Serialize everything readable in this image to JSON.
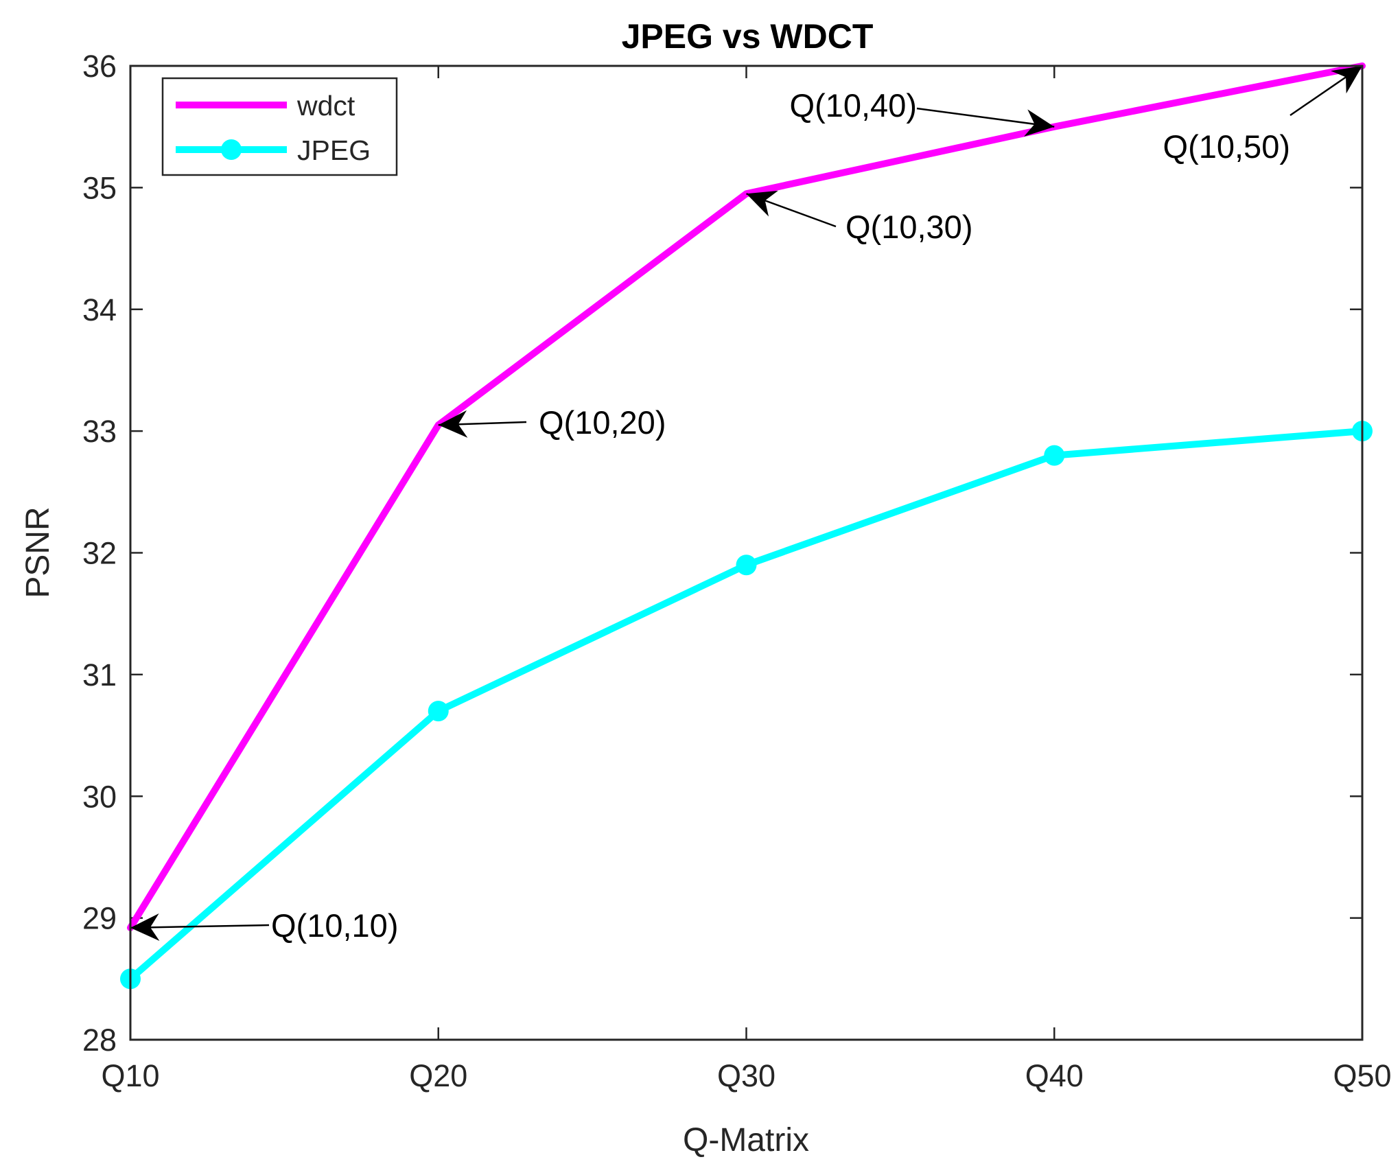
{
  "chart_data": {
    "type": "line",
    "title": "JPEG vs WDCT",
    "xlabel": "Q-Matrix",
    "ylabel": "PSNR",
    "categories": [
      "Q10",
      "Q20",
      "Q30",
      "Q40",
      "Q50"
    ],
    "ylim": [
      28,
      36
    ],
    "yticks": [
      28,
      29,
      30,
      31,
      32,
      33,
      34,
      35,
      36
    ],
    "grid": false,
    "legend_position": "top-left",
    "series": [
      {
        "name": "wdct",
        "color": "#ff00ff",
        "marker": "none",
        "values": [
          28.92,
          33.05,
          34.95,
          35.5,
          36.0
        ]
      },
      {
        "name": "JPEG",
        "color": "#00ffff",
        "marker": "circle",
        "values": [
          28.5,
          30.7,
          31.9,
          32.8,
          33.0
        ]
      }
    ],
    "annotations": [
      {
        "text": "Q(10,10)",
        "series": "wdct",
        "point_index": 0
      },
      {
        "text": "Q(10,20)",
        "series": "wdct",
        "point_index": 1
      },
      {
        "text": "Q(10,30)",
        "series": "wdct",
        "point_index": 2
      },
      {
        "text": "Q(10,40)",
        "series": "wdct",
        "point_index": 3
      },
      {
        "text": "Q(10,50)",
        "series": "wdct",
        "point_index": 4
      }
    ]
  }
}
